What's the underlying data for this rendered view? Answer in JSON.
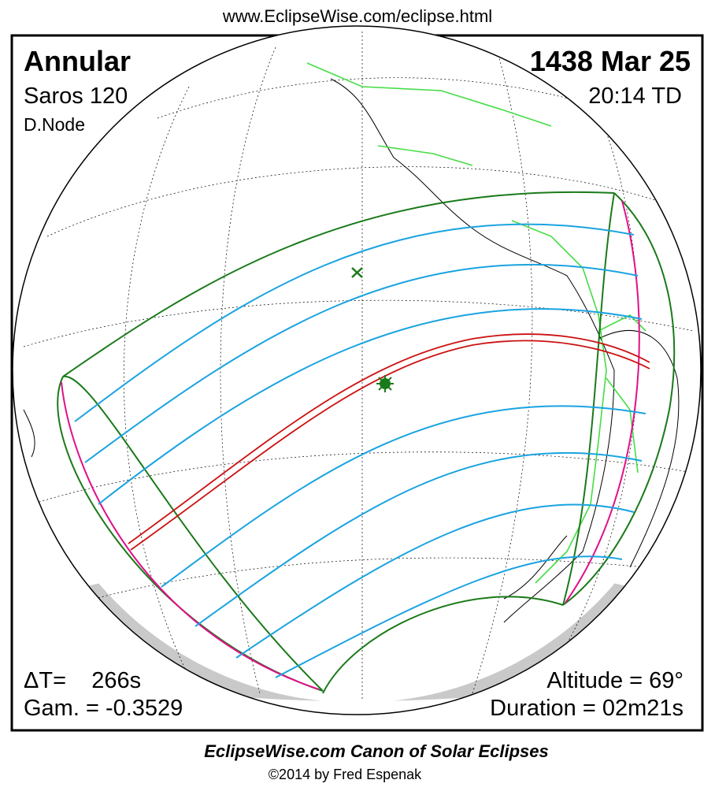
{
  "header": {
    "url": "www.EclipseWise.com/eclipse.html"
  },
  "eclipse": {
    "type": "Annular",
    "date": "1438 Mar 25",
    "saros": "Saros 120",
    "time": "20:14 TD",
    "node": "D.Node",
    "delta_t": "ΔT=    266s",
    "gamma": "Gam. = -0.3529",
    "altitude": "Altitude = 69°",
    "duration": "Duration = 02m21s"
  },
  "footer": {
    "title": "EclipseWise.com Canon of Solar Eclipses",
    "credit": "©2014 by Fred Espenak"
  }
}
